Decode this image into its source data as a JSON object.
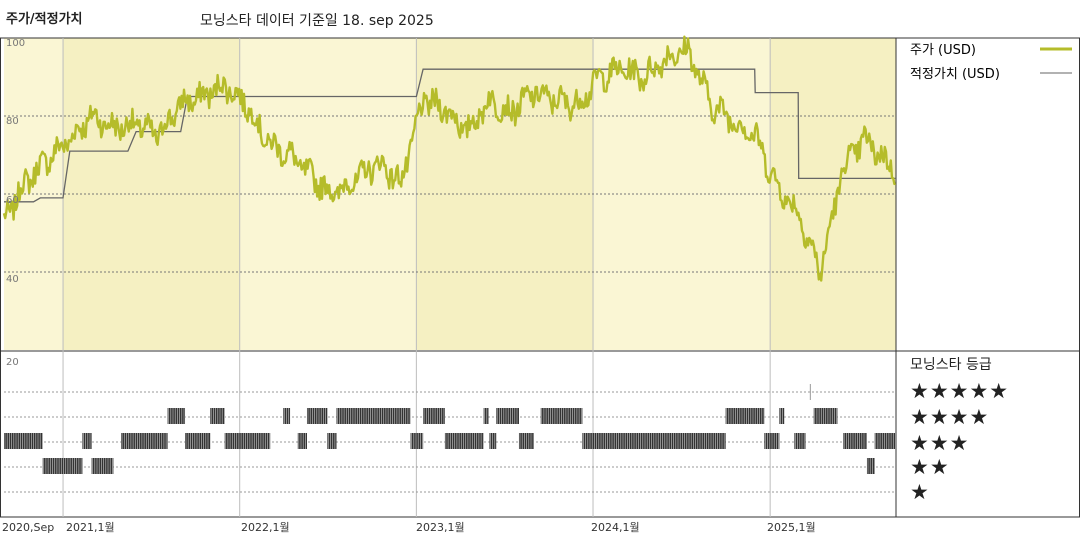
{
  "header": {
    "left_title": "주가/적정가치",
    "main_title": "모닝스타 데이터 기준일 18. sep 2025"
  },
  "legend": {
    "price_label": "주가 (USD)",
    "fair_label": "적정가치 (USD)",
    "rating_title": "모닝스타 등급"
  },
  "rating_labels": [
    "★★★★★",
    "★★★★",
    "★★★",
    "★★",
    "★"
  ],
  "colors": {
    "price": "#b5bc2a",
    "fair": "#666666",
    "band": "#faf6d4",
    "ratingbar": "#333333"
  },
  "chart_data": [
    {
      "type": "line",
      "title": "주가/적정가치",
      "ylim": [
        20,
        100
      ],
      "yticks": [
        "100",
        "80",
        "60",
        "40"
      ],
      "x_tick_labels": [
        "2020,Sep",
        "2021,1월",
        "2022,1월",
        "2023,1월",
        "2024,1월",
        "2025,1월"
      ],
      "series": [
        {
          "name": "주가 (USD)",
          "x": [
            "2020-09-01",
            "2020-10-15",
            "2020-12-01",
            "2021-01-15",
            "2021-03-01",
            "2021-04-15",
            "2021-06-01",
            "2021-07-15",
            "2021-09-01",
            "2021-10-15",
            "2021-12-01",
            "2022-01-15",
            "2022-03-01",
            "2022-04-15",
            "2022-06-01",
            "2022-07-15",
            "2022-09-01",
            "2022-10-15",
            "2022-12-01",
            "2023-01-15",
            "2023-03-01",
            "2023-04-15",
            "2023-06-01",
            "2023-07-15",
            "2023-09-01",
            "2023-10-15",
            "2023-12-01",
            "2024-01-15",
            "2024-03-01",
            "2024-04-15",
            "2024-06-01",
            "2024-07-15",
            "2024-09-01",
            "2024-10-15",
            "2024-12-01",
            "2025-01-15",
            "2025-03-01",
            "2025-04-15",
            "2025-06-01",
            "2025-07-15",
            "2025-09-01",
            "2025-09-18"
          ],
          "values": [
            53,
            63,
            69,
            74,
            80,
            77,
            78,
            75,
            83,
            85,
            88,
            83,
            73,
            70,
            64,
            60,
            64,
            68,
            63,
            84,
            82,
            76,
            84,
            81,
            86,
            84,
            83,
            90,
            92,
            90,
            95,
            97,
            83,
            79,
            75,
            62,
            55,
            40,
            67,
            74,
            68,
            66
          ]
        },
        {
          "name": "적정가치 (USD)",
          "x": [
            "2020-09-01",
            "2020-11-01",
            "2020-11-15",
            "2021-01-01",
            "2021-01-15",
            "2021-05-15",
            "2021-06-01",
            "2021-09-01",
            "2021-09-15",
            "2022-08-31",
            "2022-09-01",
            "2023-01-01",
            "2023-01-15",
            "2024-11-30",
            "2024-12-01",
            "2025-02-28",
            "2025-03-01",
            "2025-09-18"
          ],
          "values": [
            58,
            58,
            59,
            59,
            71,
            71,
            76,
            76,
            85,
            85,
            85,
            85,
            92,
            92,
            86,
            86,
            64,
            64
          ]
        }
      ]
    },
    {
      "type": "heatmap",
      "title": "모닝스타 등급",
      "rows": [
        "5",
        "4",
        "3",
        "2",
        "1"
      ],
      "ytick": "20",
      "segments": [
        {
          "stars": 3,
          "start": "2020-09-01",
          "end": "2020-11-20"
        },
        {
          "stars": 2,
          "start": "2020-11-20",
          "end": "2021-02-10"
        },
        {
          "stars": 3,
          "start": "2021-02-10",
          "end": "2021-03-01"
        },
        {
          "stars": 2,
          "start": "2021-03-01",
          "end": "2021-04-15"
        },
        {
          "stars": 3,
          "start": "2021-05-01",
          "end": "2021-08-05"
        },
        {
          "stars": 4,
          "start": "2021-08-05",
          "end": "2021-09-10"
        },
        {
          "stars": 3,
          "start": "2021-09-10",
          "end": "2021-11-01"
        },
        {
          "stars": 4,
          "start": "2021-11-01",
          "end": "2021-12-01"
        },
        {
          "stars": 3,
          "start": "2021-12-01",
          "end": "2022-03-05"
        },
        {
          "stars": 4,
          "start": "2022-04-01",
          "end": "2022-04-15"
        },
        {
          "stars": 3,
          "start": "2022-05-01",
          "end": "2022-05-20"
        },
        {
          "stars": 4,
          "start": "2022-05-20",
          "end": "2022-07-01"
        },
        {
          "stars": 3,
          "start": "2022-07-01",
          "end": "2022-07-20"
        },
        {
          "stars": 4,
          "start": "2022-07-20",
          "end": "2022-12-20"
        },
        {
          "stars": 3,
          "start": "2022-12-20",
          "end": "2023-01-15"
        },
        {
          "stars": 4,
          "start": "2023-01-15",
          "end": "2023-03-01"
        },
        {
          "stars": 3,
          "start": "2023-03-01",
          "end": "2023-05-20"
        },
        {
          "stars": 4,
          "start": "2023-05-20",
          "end": "2023-05-30"
        },
        {
          "stars": 3,
          "start": "2023-06-01",
          "end": "2023-06-15"
        },
        {
          "stars": 4,
          "start": "2023-06-15",
          "end": "2023-08-01"
        },
        {
          "stars": 3,
          "start": "2023-08-01",
          "end": "2023-09-01"
        },
        {
          "stars": 4,
          "start": "2023-09-15",
          "end": "2023-12-10"
        },
        {
          "stars": 3,
          "start": "2023-12-10",
          "end": "2024-10-01"
        },
        {
          "stars": 4,
          "start": "2024-10-01",
          "end": "2024-12-20"
        },
        {
          "stars": 3,
          "start": "2024-12-20",
          "end": "2025-01-20"
        },
        {
          "stars": 4,
          "start": "2025-01-20",
          "end": "2025-01-30"
        },
        {
          "stars": 3,
          "start": "2025-02-20",
          "end": "2025-03-15"
        },
        {
          "stars": 5,
          "start": "2025-03-25",
          "end": "2025-03-28"
        },
        {
          "stars": 4,
          "start": "2025-04-01",
          "end": "2025-05-20"
        },
        {
          "stars": 3,
          "start": "2025-06-01",
          "end": "2025-07-20"
        },
        {
          "stars": 2,
          "start": "2025-07-20",
          "end": "2025-08-05"
        },
        {
          "stars": 3,
          "start": "2025-08-05",
          "end": "2025-09-18"
        }
      ]
    }
  ]
}
